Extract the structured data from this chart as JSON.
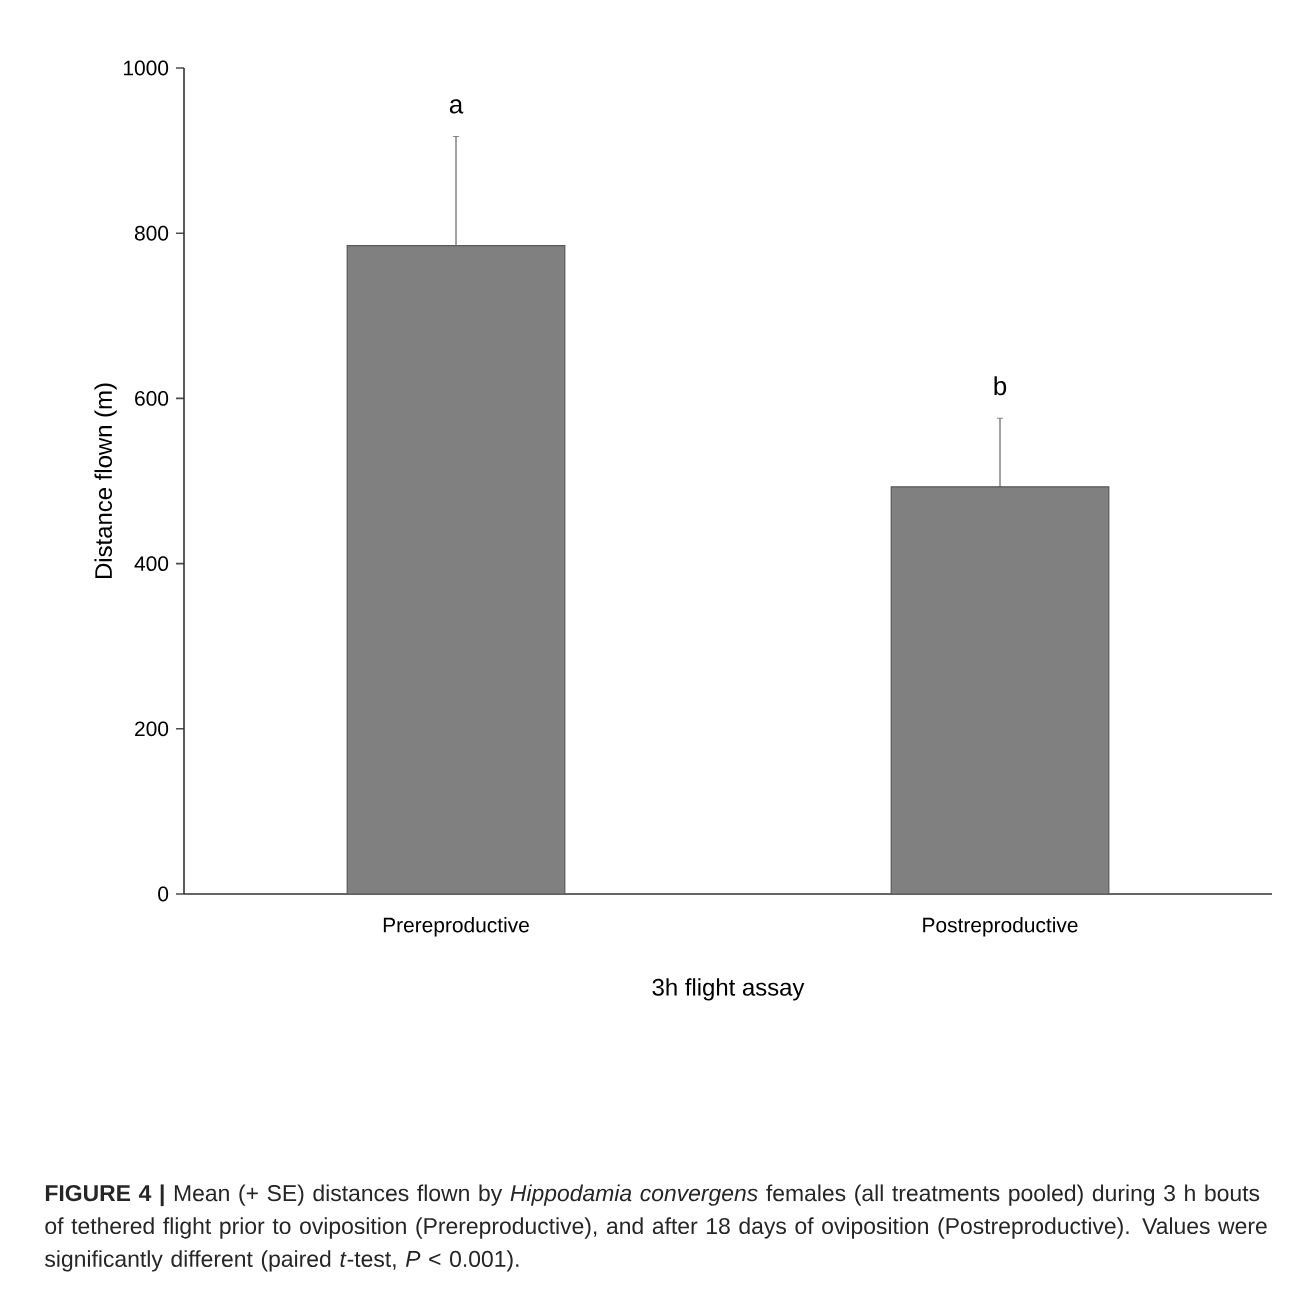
{
  "chart_data": {
    "type": "bar",
    "xlabel": "3h flight assay",
    "ylabel": "Distance flown (m)",
    "categories": [
      "Prereproductive",
      "Postreproductive"
    ],
    "values": [
      785,
      493
    ],
    "color": "#808080",
    "errors": [
      [
        785,
        917
      ],
      [
        493,
        576
      ]
    ],
    "ylim": [
      0,
      1000
    ],
    "yticks": [
      0,
      200,
      400,
      600,
      800,
      1000
    ],
    "grid": false,
    "annotations": [
      "a",
      "b",
      "**FIGURE 4 |** Mean (+ SE) distances flown by *Hippodamia convergens* females (all treatments pooled) during 3 h bouts of tethered flight prior to oviposition (Prereproductive), and after 18 days of oviposition (Postreproductive). Values were significantly different (paired *t*-test, *P* < 0.001)."
    ]
  }
}
